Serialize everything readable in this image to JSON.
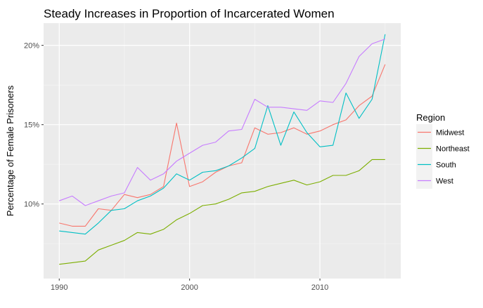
{
  "chart_data": {
    "type": "line",
    "title": "Steady Increases in Proportion of Incarcerated Women",
    "xlabel": "",
    "ylabel": "Percentage of Female Prisoners",
    "xlim": [
      1988.8,
      2016.2
    ],
    "ylim": [
      5.3,
      21.4
    ],
    "x_ticks": [
      1990,
      2000,
      2010
    ],
    "x_tick_labels": [
      "1990",
      "2000",
      "2010"
    ],
    "y_ticks": [
      10,
      15,
      20
    ],
    "y_tick_labels": [
      "10%",
      "15%",
      "20%"
    ],
    "grid": true,
    "legend": {
      "title": "Region",
      "position": "right"
    },
    "x": [
      1990,
      1991,
      1992,
      1993,
      1994,
      1995,
      1996,
      1997,
      1998,
      1999,
      2000,
      2001,
      2002,
      2003,
      2004,
      2005,
      2006,
      2007,
      2008,
      2009,
      2010,
      2011,
      2012,
      2013,
      2014,
      2015
    ],
    "series": [
      {
        "name": "Midwest",
        "color": "#F8766D",
        "values": [
          8.8,
          8.6,
          8.6,
          9.7,
          9.6,
          10.6,
          10.4,
          10.6,
          11.1,
          15.1,
          11.1,
          11.4,
          12.0,
          12.4,
          12.6,
          14.8,
          14.4,
          14.5,
          14.8,
          14.4,
          14.6,
          15.0,
          15.3,
          16.2,
          16.8,
          18.8
        ]
      },
      {
        "name": "Northeast",
        "color": "#7CAE00",
        "values": [
          6.2,
          6.3,
          6.4,
          7.1,
          7.4,
          7.7,
          8.2,
          8.1,
          8.4,
          9.0,
          9.4,
          9.9,
          10.0,
          10.3,
          10.7,
          10.8,
          11.1,
          11.3,
          11.5,
          11.2,
          11.4,
          11.8,
          11.8,
          12.1,
          12.8,
          12.8
        ]
      },
      {
        "name": "South",
        "color": "#00BFC4",
        "values": [
          8.3,
          8.2,
          8.1,
          8.8,
          9.6,
          9.7,
          10.2,
          10.5,
          11.0,
          11.9,
          11.5,
          12.0,
          12.1,
          12.4,
          12.9,
          13.5,
          16.2,
          13.7,
          15.8,
          14.5,
          13.6,
          13.7,
          17.0,
          15.4,
          16.6,
          20.7
        ]
      },
      {
        "name": "West",
        "color": "#C77CFF",
        "values": [
          10.2,
          10.5,
          9.9,
          10.2,
          10.5,
          10.7,
          12.3,
          11.5,
          11.9,
          12.7,
          13.2,
          13.7,
          13.9,
          14.6,
          14.7,
          16.6,
          16.1,
          16.1,
          16.0,
          15.9,
          16.5,
          16.4,
          17.6,
          19.3,
          20.1,
          20.4
        ]
      }
    ]
  }
}
